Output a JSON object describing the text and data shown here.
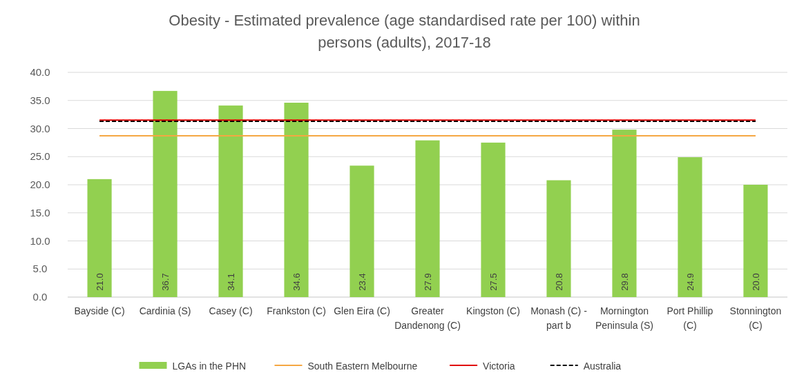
{
  "chart_data": {
    "type": "bar",
    "title": "Obesity - Estimated prevalence (age standardised rate per 100) within persons (adults), 2017-18",
    "categories": [
      "Bayside (C)",
      "Cardinia (S)",
      "Casey (C)",
      "Frankston (C)",
      "Glen Eira (C)",
      "Greater Dandenong (C)",
      "Kingston (C)",
      "Monash (C) - part b",
      "Mornington Peninsula (S)",
      "Port Phillip (C)",
      "Stonnington (C)"
    ],
    "series": [
      {
        "name": "LGAs in the PHN",
        "color": "#92d050",
        "values": [
          21.0,
          36.7,
          34.1,
          34.6,
          23.4,
          27.9,
          27.5,
          20.8,
          29.8,
          24.9,
          20.0
        ],
        "value_labels": [
          "21.0",
          "36.7",
          "34.1",
          "34.6",
          "23.4",
          "27.9",
          "27.5",
          "20.8",
          "29.8",
          "24.9",
          "20.0"
        ]
      },
      {
        "name": "South Eastern Melbourne",
        "type": "line",
        "color": "#f5a742",
        "line_style": "solid",
        "values": [
          28.7,
          28.7,
          28.7,
          28.7,
          28.7,
          28.7,
          28.7,
          28.7,
          28.7,
          28.7,
          28.7
        ]
      },
      {
        "name": "Victoria",
        "type": "line",
        "color": "#e00000",
        "line_style": "solid",
        "values": [
          31.5,
          31.5,
          31.5,
          31.5,
          31.5,
          31.5,
          31.5,
          31.5,
          31.5,
          31.5,
          31.5
        ]
      },
      {
        "name": "Australia",
        "type": "line",
        "color": "#000000",
        "line_style": "dashed",
        "values": [
          31.3,
          31.3,
          31.3,
          31.3,
          31.3,
          31.3,
          31.3,
          31.3,
          31.3,
          31.3,
          31.3
        ]
      }
    ],
    "ylim": [
      0,
      40
    ],
    "yticks": [
      {
        "value": 0,
        "label": "0.0"
      },
      {
        "value": 5,
        "label": "5.0"
      },
      {
        "value": 10,
        "label": "10.0"
      },
      {
        "value": 15,
        "label": "15.0"
      },
      {
        "value": 20,
        "label": "20.0"
      },
      {
        "value": 25,
        "label": "25.0"
      },
      {
        "value": 30,
        "label": "30.0"
      },
      {
        "value": 35,
        "label": "35.0"
      },
      {
        "value": 40,
        "label": "40.0"
      }
    ],
    "grid": "y",
    "legend": "bottom",
    "marker": "none"
  }
}
